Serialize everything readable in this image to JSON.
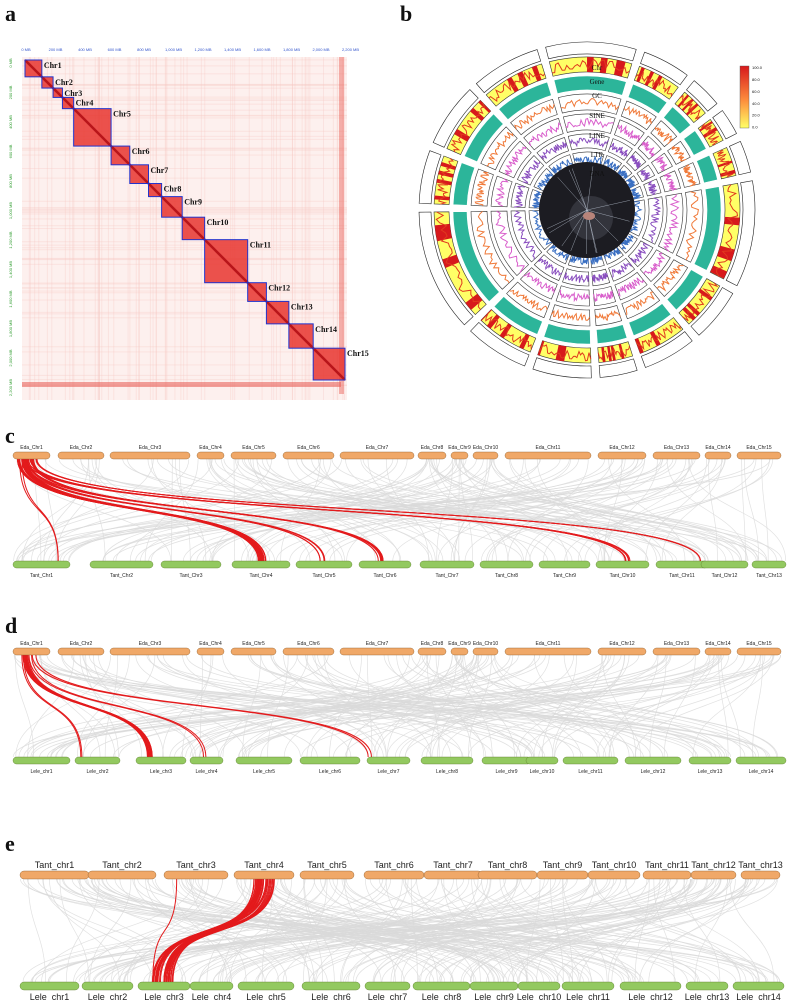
{
  "panels": {
    "a": "a",
    "b": "b",
    "c": "c",
    "d": "d",
    "e": "e"
  },
  "panel_a": {
    "chromosomes": [
      "Chr1",
      "Chr2",
      "Chr3",
      "Chr4",
      "Chr5",
      "Chr6",
      "Chr7",
      "Chr8",
      "Chr9",
      "Chr10",
      "Chr11",
      "Chr12",
      "Chr13",
      "Chr14",
      "Chr15"
    ],
    "sizes": [
      18,
      12,
      10,
      12,
      40,
      20,
      20,
      14,
      22,
      24,
      46,
      20,
      24,
      26,
      34
    ],
    "top_ticks": [
      "0 MB",
      "200 MB",
      "400 MB",
      "600 MB",
      "800 MB",
      "1,000 MB",
      "1,200 MB",
      "1,400 MB",
      "1,600 MB",
      "1,800 MB",
      "2,000 MB",
      "2,200 MB"
    ],
    "left_ticks": [
      "0 MB",
      "200 MB",
      "400 MB",
      "600 MB",
      "800 MB",
      "1,000 MB",
      "1,200 MB",
      "1,400 MB",
      "1,600 MB",
      "1,800 MB",
      "2,000 MB",
      "2,200 MB"
    ],
    "colors": {
      "heat_bg": "#fbe1de",
      "block": "#e8352f",
      "border": "#2233cc"
    }
  },
  "panel_b": {
    "track_labels": [
      "Chr",
      "Gene",
      "GC",
      "SINE",
      "LINE",
      "LTR",
      "DNA"
    ],
    "legend_ticks": [
      "100.0",
      "80.0",
      "60.0",
      "40.0",
      "20.0",
      "0.0"
    ],
    "colors": {
      "gene_low": "#ffff66",
      "gene_high": "#d7191c",
      "gc": "#2cb59a",
      "sine": "#f07a3a",
      "line": "#d95fcc",
      "ltr": "#8a4fbf",
      "dna": "#3a6fc2"
    }
  },
  "panel_c": {
    "top": [
      "Eda_Chr1",
      "Eda_Chr2",
      "Eda_Chr3",
      "Eda_Chr4",
      "Eda_Chr5",
      "Eda_Chr6",
      "Eda_Chr7",
      "Eda_Chr8",
      "Eda_Chr9",
      "Eda_Chr10",
      "Eda_Chr11",
      "Eda_Chr12",
      "Eda_Chr13",
      "Eda_Chr14",
      "Eda_Chr15"
    ],
    "bottom": [
      "Tant_Chr1",
      "Tant_Chr2",
      "Tant_Chr3",
      "Tant_Chr4",
      "Tant_Chr5",
      "Tant_Chr6",
      "Tant_Chr7",
      "Tant_Chr8",
      "Tant_Chr9",
      "Tant_Chr10",
      "Tant_Chr11",
      "Tant_Chr12",
      "Tant_Chr13"
    ]
  },
  "panel_d": {
    "top": [
      "Eda_Chr1",
      "Eda_Chr2",
      "Eda_Chr3",
      "Eda_Chr4",
      "Eda_Chr5",
      "Eda_Chr6",
      "Eda_Chr7",
      "Eda_Chr8",
      "Eda_Chr9",
      "Eda_Chr10",
      "Eda_Chr11",
      "Eda_Chr12",
      "Eda_Chr13",
      "Eda_Chr14",
      "Eda_Chr15"
    ],
    "bottom": [
      "Lele_chr1",
      "Lele_chr2",
      "Lele_chr3",
      "Lele_chr4",
      "Lele_chr5",
      "Lele_chr6",
      "Lele_chr7",
      "Lele_chr8",
      "Lele_chr9",
      "Lele_chr10",
      "Lele_chr11",
      "Lele_chr12",
      "Lele_chr13",
      "Lele_chr14"
    ]
  },
  "panel_e": {
    "top": [
      "Tant_chr1",
      "Tant_chr2",
      "Tant_chr3",
      "Tant_chr4",
      "Tant_chr5",
      "Tant_chr6",
      "Tant_chr7",
      "Tant_chr8",
      "Tant_chr9",
      "Tant_chr10",
      "Tant_chr11",
      "Tant_chr12",
      "Tant_chr13"
    ],
    "bottom": [
      "Lele_chr1",
      "Lele_chr2",
      "Lele_chr3",
      "Lele_chr4",
      "Lele_chr5",
      "Lele_chr6",
      "Lele_chr7",
      "Lele_chr8",
      "Lele_chr9",
      "Lele_chr10",
      "Lele_chr11",
      "Lele_chr12",
      "Lele_chr13",
      "Lele_chr14"
    ]
  },
  "colors": {
    "top_bar": "#f0a868",
    "bottom_bar": "#93c960",
    "link_grey": "#d9d9d9",
    "link_red": "#e31a1c"
  }
}
